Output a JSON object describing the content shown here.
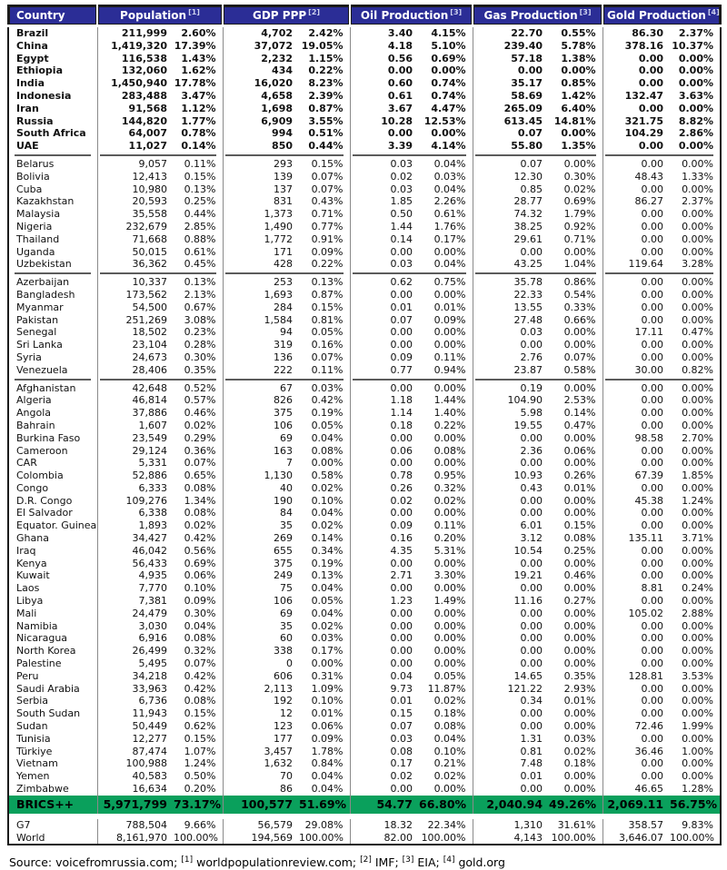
{
  "colors": {
    "header_bg": "#2b2d96",
    "brics_bg": "#0aa05c",
    "border": "#1a1a1a",
    "grid": "#8a8a8a",
    "sep": "#5c5c5c"
  },
  "table": {
    "columns": [
      {
        "label": "Country",
        "ref": ""
      },
      {
        "label": "Population",
        "ref": "[1]"
      },
      {
        "label": "GDP PPP",
        "ref": "[2]"
      },
      {
        "label": "Oil Production",
        "ref": "[3]"
      },
      {
        "label": "Gas Production",
        "ref": "[3]"
      },
      {
        "label": "Gold Production",
        "ref": "[4]"
      }
    ],
    "groups": [
      {
        "bold": true,
        "rows": [
          [
            "Brazil",
            "211,999",
            "2.60%",
            "4,702",
            "2.42%",
            "3.40",
            "4.15%",
            "22.70",
            "0.55%",
            "86.30",
            "2.37%"
          ],
          [
            "China",
            "1,419,320",
            "17.39%",
            "37,072",
            "19.05%",
            "4.18",
            "5.10%",
            "239.40",
            "5.78%",
            "378.16",
            "10.37%"
          ],
          [
            "Egypt",
            "116,538",
            "1.43%",
            "2,232",
            "1.15%",
            "0.56",
            "0.69%",
            "57.18",
            "1.38%",
            "0.00",
            "0.00%"
          ],
          [
            "Ethiopia",
            "132,060",
            "1.62%",
            "434",
            "0.22%",
            "0.00",
            "0.00%",
            "0.00",
            "0.00%",
            "0.00",
            "0.00%"
          ],
          [
            "India",
            "1,450,940",
            "17.78%",
            "16,020",
            "8.23%",
            "0.60",
            "0.74%",
            "35.17",
            "0.85%",
            "0.00",
            "0.00%"
          ],
          [
            "Indonesia",
            "283,488",
            "3.47%",
            "4,658",
            "2.39%",
            "0.61",
            "0.74%",
            "58.69",
            "1.42%",
            "132.47",
            "3.63%"
          ],
          [
            "Iran",
            "91,568",
            "1.12%",
            "1,698",
            "0.87%",
            "3.67",
            "4.47%",
            "265.09",
            "6.40%",
            "0.00",
            "0.00%"
          ],
          [
            "Russia",
            "144,820",
            "1.77%",
            "6,909",
            "3.55%",
            "10.28",
            "12.53%",
            "613.45",
            "14.81%",
            "321.75",
            "8.82%"
          ],
          [
            "South Africa",
            "64,007",
            "0.78%",
            "994",
            "0.51%",
            "0.00",
            "0.00%",
            "0.07",
            "0.00%",
            "104.29",
            "2.86%"
          ],
          [
            "UAE",
            "11,027",
            "0.14%",
            "850",
            "0.44%",
            "3.39",
            "4.14%",
            "55.80",
            "1.35%",
            "0.00",
            "0.00%"
          ]
        ]
      },
      {
        "bold": false,
        "rows": [
          [
            "Belarus",
            "9,057",
            "0.11%",
            "293",
            "0.15%",
            "0.03",
            "0.04%",
            "0.07",
            "0.00%",
            "0.00",
            "0.00%"
          ],
          [
            "Bolivia",
            "12,413",
            "0.15%",
            "139",
            "0.07%",
            "0.02",
            "0.03%",
            "12.30",
            "0.30%",
            "48.43",
            "1.33%"
          ],
          [
            "Cuba",
            "10,980",
            "0.13%",
            "137",
            "0.07%",
            "0.03",
            "0.04%",
            "0.85",
            "0.02%",
            "0.00",
            "0.00%"
          ],
          [
            "Kazakhstan",
            "20,593",
            "0.25%",
            "831",
            "0.43%",
            "1.85",
            "2.26%",
            "28.77",
            "0.69%",
            "86.27",
            "2.37%"
          ],
          [
            "Malaysia",
            "35,558",
            "0.44%",
            "1,373",
            "0.71%",
            "0.50",
            "0.61%",
            "74.32",
            "1.79%",
            "0.00",
            "0.00%"
          ],
          [
            "Nigeria",
            "232,679",
            "2.85%",
            "1,490",
            "0.77%",
            "1.44",
            "1.76%",
            "38.25",
            "0.92%",
            "0.00",
            "0.00%"
          ],
          [
            "Thailand",
            "71,668",
            "0.88%",
            "1,772",
            "0.91%",
            "0.14",
            "0.17%",
            "29.61",
            "0.71%",
            "0.00",
            "0.00%"
          ],
          [
            "Uganda",
            "50,015",
            "0.61%",
            "171",
            "0.09%",
            "0.00",
            "0.00%",
            "0.00",
            "0.00%",
            "0.00",
            "0.00%"
          ],
          [
            "Uzbekistan",
            "36,362",
            "0.45%",
            "428",
            "0.22%",
            "0.03",
            "0.04%",
            "43.25",
            "1.04%",
            "119.64",
            "3.28%"
          ]
        ]
      },
      {
        "bold": false,
        "rows": [
          [
            "Azerbaijan",
            "10,337",
            "0.13%",
            "253",
            "0.13%",
            "0.62",
            "0.75%",
            "35.78",
            "0.86%",
            "0.00",
            "0.00%"
          ],
          [
            "Bangladesh",
            "173,562",
            "2.13%",
            "1,693",
            "0.87%",
            "0.00",
            "0.00%",
            "22.33",
            "0.54%",
            "0.00",
            "0.00%"
          ],
          [
            "Myanmar",
            "54,500",
            "0.67%",
            "284",
            "0.15%",
            "0.01",
            "0.01%",
            "13.55",
            "0.33%",
            "0.00",
            "0.00%"
          ],
          [
            "Pakistan",
            "251,269",
            "3.08%",
            "1,584",
            "0.81%",
            "0.07",
            "0.09%",
            "27.48",
            "0.66%",
            "0.00",
            "0.00%"
          ],
          [
            "Senegal",
            "18,502",
            "0.23%",
            "94",
            "0.05%",
            "0.00",
            "0.00%",
            "0.03",
            "0.00%",
            "17.11",
            "0.47%"
          ],
          [
            "Sri Lanka",
            "23,104",
            "0.28%",
            "319",
            "0.16%",
            "0.00",
            "0.00%",
            "0.00",
            "0.00%",
            "0.00",
            "0.00%"
          ],
          [
            "Syria",
            "24,673",
            "0.30%",
            "136",
            "0.07%",
            "0.09",
            "0.11%",
            "2.76",
            "0.07%",
            "0.00",
            "0.00%"
          ],
          [
            "Venezuela",
            "28,406",
            "0.35%",
            "222",
            "0.11%",
            "0.77",
            "0.94%",
            "23.87",
            "0.58%",
            "30.00",
            "0.82%"
          ]
        ]
      },
      {
        "bold": false,
        "rows": [
          [
            "Afghanistan",
            "42,648",
            "0.52%",
            "67",
            "0.03%",
            "0.00",
            "0.00%",
            "0.19",
            "0.00%",
            "0.00",
            "0.00%"
          ],
          [
            "Algeria",
            "46,814",
            "0.57%",
            "826",
            "0.42%",
            "1.18",
            "1.44%",
            "104.90",
            "2.53%",
            "0.00",
            "0.00%"
          ],
          [
            "Angola",
            "37,886",
            "0.46%",
            "375",
            "0.19%",
            "1.14",
            "1.40%",
            "5.98",
            "0.14%",
            "0.00",
            "0.00%"
          ],
          [
            "Bahrain",
            "1,607",
            "0.02%",
            "106",
            "0.05%",
            "0.18",
            "0.22%",
            "19.55",
            "0.47%",
            "0.00",
            "0.00%"
          ],
          [
            "Burkina Faso",
            "23,549",
            "0.29%",
            "69",
            "0.04%",
            "0.00",
            "0.00%",
            "0.00",
            "0.00%",
            "98.58",
            "2.70%"
          ],
          [
            "Cameroon",
            "29,124",
            "0.36%",
            "163",
            "0.08%",
            "0.06",
            "0.08%",
            "2.36",
            "0.06%",
            "0.00",
            "0.00%"
          ],
          [
            "CAR",
            "5,331",
            "0.07%",
            "7",
            "0.00%",
            "0.00",
            "0.00%",
            "0.00",
            "0.00%",
            "0.00",
            "0.00%"
          ],
          [
            "Colombia",
            "52,886",
            "0.65%",
            "1,130",
            "0.58%",
            "0.78",
            "0.95%",
            "10.93",
            "0.26%",
            "67.39",
            "1.85%"
          ],
          [
            "Congo",
            "6,333",
            "0.08%",
            "40",
            "0.02%",
            "0.26",
            "0.32%",
            "0.43",
            "0.01%",
            "0.00",
            "0.00%"
          ],
          [
            "D.R. Congo",
            "109,276",
            "1.34%",
            "190",
            "0.10%",
            "0.02",
            "0.02%",
            "0.00",
            "0.00%",
            "45.38",
            "1.24%"
          ],
          [
            "El Salvador",
            "6,338",
            "0.08%",
            "84",
            "0.04%",
            "0.00",
            "0.00%",
            "0.00",
            "0.00%",
            "0.00",
            "0.00%"
          ],
          [
            "Equator. Guinea",
            "1,893",
            "0.02%",
            "35",
            "0.02%",
            "0.09",
            "0.11%",
            "6.01",
            "0.15%",
            "0.00",
            "0.00%"
          ],
          [
            "Ghana",
            "34,427",
            "0.42%",
            "269",
            "0.14%",
            "0.16",
            "0.20%",
            "3.12",
            "0.08%",
            "135.11",
            "3.71%"
          ],
          [
            "Iraq",
            "46,042",
            "0.56%",
            "655",
            "0.34%",
            "4.35",
            "5.31%",
            "10.54",
            "0.25%",
            "0.00",
            "0.00%"
          ],
          [
            "Kenya",
            "56,433",
            "0.69%",
            "375",
            "0.19%",
            "0.00",
            "0.00%",
            "0.00",
            "0.00%",
            "0.00",
            "0.00%"
          ],
          [
            "Kuwait",
            "4,935",
            "0.06%",
            "249",
            "0.13%",
            "2.71",
            "3.30%",
            "19.21",
            "0.46%",
            "0.00",
            "0.00%"
          ],
          [
            "Laos",
            "7,770",
            "0.10%",
            "75",
            "0.04%",
            "0.00",
            "0.00%",
            "0.00",
            "0.00%",
            "8.81",
            "0.24%"
          ],
          [
            "Libya",
            "7,381",
            "0.09%",
            "106",
            "0.05%",
            "1.23",
            "1.49%",
            "11.16",
            "0.27%",
            "0.00",
            "0.00%"
          ],
          [
            "Mali",
            "24,479",
            "0.30%",
            "69",
            "0.04%",
            "0.00",
            "0.00%",
            "0.00",
            "0.00%",
            "105.02",
            "2.88%"
          ],
          [
            "Namibia",
            "3,030",
            "0.04%",
            "35",
            "0.02%",
            "0.00",
            "0.00%",
            "0.00",
            "0.00%",
            "0.00",
            "0.00%"
          ],
          [
            "Nicaragua",
            "6,916",
            "0.08%",
            "60",
            "0.03%",
            "0.00",
            "0.00%",
            "0.00",
            "0.00%",
            "0.00",
            "0.00%"
          ],
          [
            "North Korea",
            "26,499",
            "0.32%",
            "338",
            "0.17%",
            "0.00",
            "0.00%",
            "0.00",
            "0.00%",
            "0.00",
            "0.00%"
          ],
          [
            "Palestine",
            "5,495",
            "0.07%",
            "0",
            "0.00%",
            "0.00",
            "0.00%",
            "0.00",
            "0.00%",
            "0.00",
            "0.00%"
          ],
          [
            "Peru",
            "34,218",
            "0.42%",
            "606",
            "0.31%",
            "0.04",
            "0.05%",
            "14.65",
            "0.35%",
            "128.81",
            "3.53%"
          ],
          [
            "Saudi Arabia",
            "33,963",
            "0.42%",
            "2,113",
            "1.09%",
            "9.73",
            "11.87%",
            "121.22",
            "2.93%",
            "0.00",
            "0.00%"
          ],
          [
            "Serbia",
            "6,736",
            "0.08%",
            "192",
            "0.10%",
            "0.01",
            "0.02%",
            "0.34",
            "0.01%",
            "0.00",
            "0.00%"
          ],
          [
            "South Sudan",
            "11,943",
            "0.15%",
            "12",
            "0.01%",
            "0.15",
            "0.18%",
            "0.00",
            "0.00%",
            "0.00",
            "0.00%"
          ],
          [
            "Sudan",
            "50,449",
            "0.62%",
            "123",
            "0.06%",
            "0.07",
            "0.08%",
            "0.00",
            "0.00%",
            "72.46",
            "1.99%"
          ],
          [
            "Tunisia",
            "12,277",
            "0.15%",
            "177",
            "0.09%",
            "0.03",
            "0.04%",
            "1.31",
            "0.03%",
            "0.00",
            "0.00%"
          ],
          [
            "Türkiye",
            "87,474",
            "1.07%",
            "3,457",
            "1.78%",
            "0.08",
            "0.10%",
            "0.81",
            "0.02%",
            "36.46",
            "1.00%"
          ],
          [
            "Vietnam",
            "100,988",
            "1.24%",
            "1,632",
            "0.84%",
            "0.17",
            "0.21%",
            "7.48",
            "0.18%",
            "0.00",
            "0.00%"
          ],
          [
            "Yemen",
            "40,583",
            "0.50%",
            "70",
            "0.04%",
            "0.02",
            "0.02%",
            "0.01",
            "0.00%",
            "0.00",
            "0.00%"
          ],
          [
            "Zimbabwe",
            "16,634",
            "0.20%",
            "86",
            "0.04%",
            "0.00",
            "0.00%",
            "0.00",
            "0.00%",
            "46.65",
            "1.28%"
          ]
        ]
      }
    ],
    "summary": {
      "brics": [
        "BRICS++",
        "5,971,799",
        "73.17%",
        "100,577",
        "51.69%",
        "54.77",
        "66.80%",
        "2,040.94",
        "49.26%",
        "2,069.11",
        "56.75%"
      ],
      "g7": [
        "G7",
        "788,504",
        "9.66%",
        "56,579",
        "29.08%",
        "18.32",
        "22.34%",
        "1,310",
        "31.61%",
        "358.57",
        "9.83%"
      ],
      "world": [
        "World",
        "8,161,970",
        "100.00%",
        "194,569",
        "100.00%",
        "82.00",
        "100.00%",
        "4,143",
        "100.00%",
        "3,646.07",
        "100.00%"
      ]
    }
  },
  "footer": [
    {
      "t": "Source: voicefromrussia.com; "
    },
    {
      "sup": "[1]"
    },
    {
      "t": " worldpopulationreview.com; "
    },
    {
      "sup": "[2]"
    },
    {
      "t": " IMF; "
    },
    {
      "sup": "[3]"
    },
    {
      "t": " EIA; "
    },
    {
      "sup": "[4]"
    },
    {
      "t": " gold.org"
    }
  ]
}
